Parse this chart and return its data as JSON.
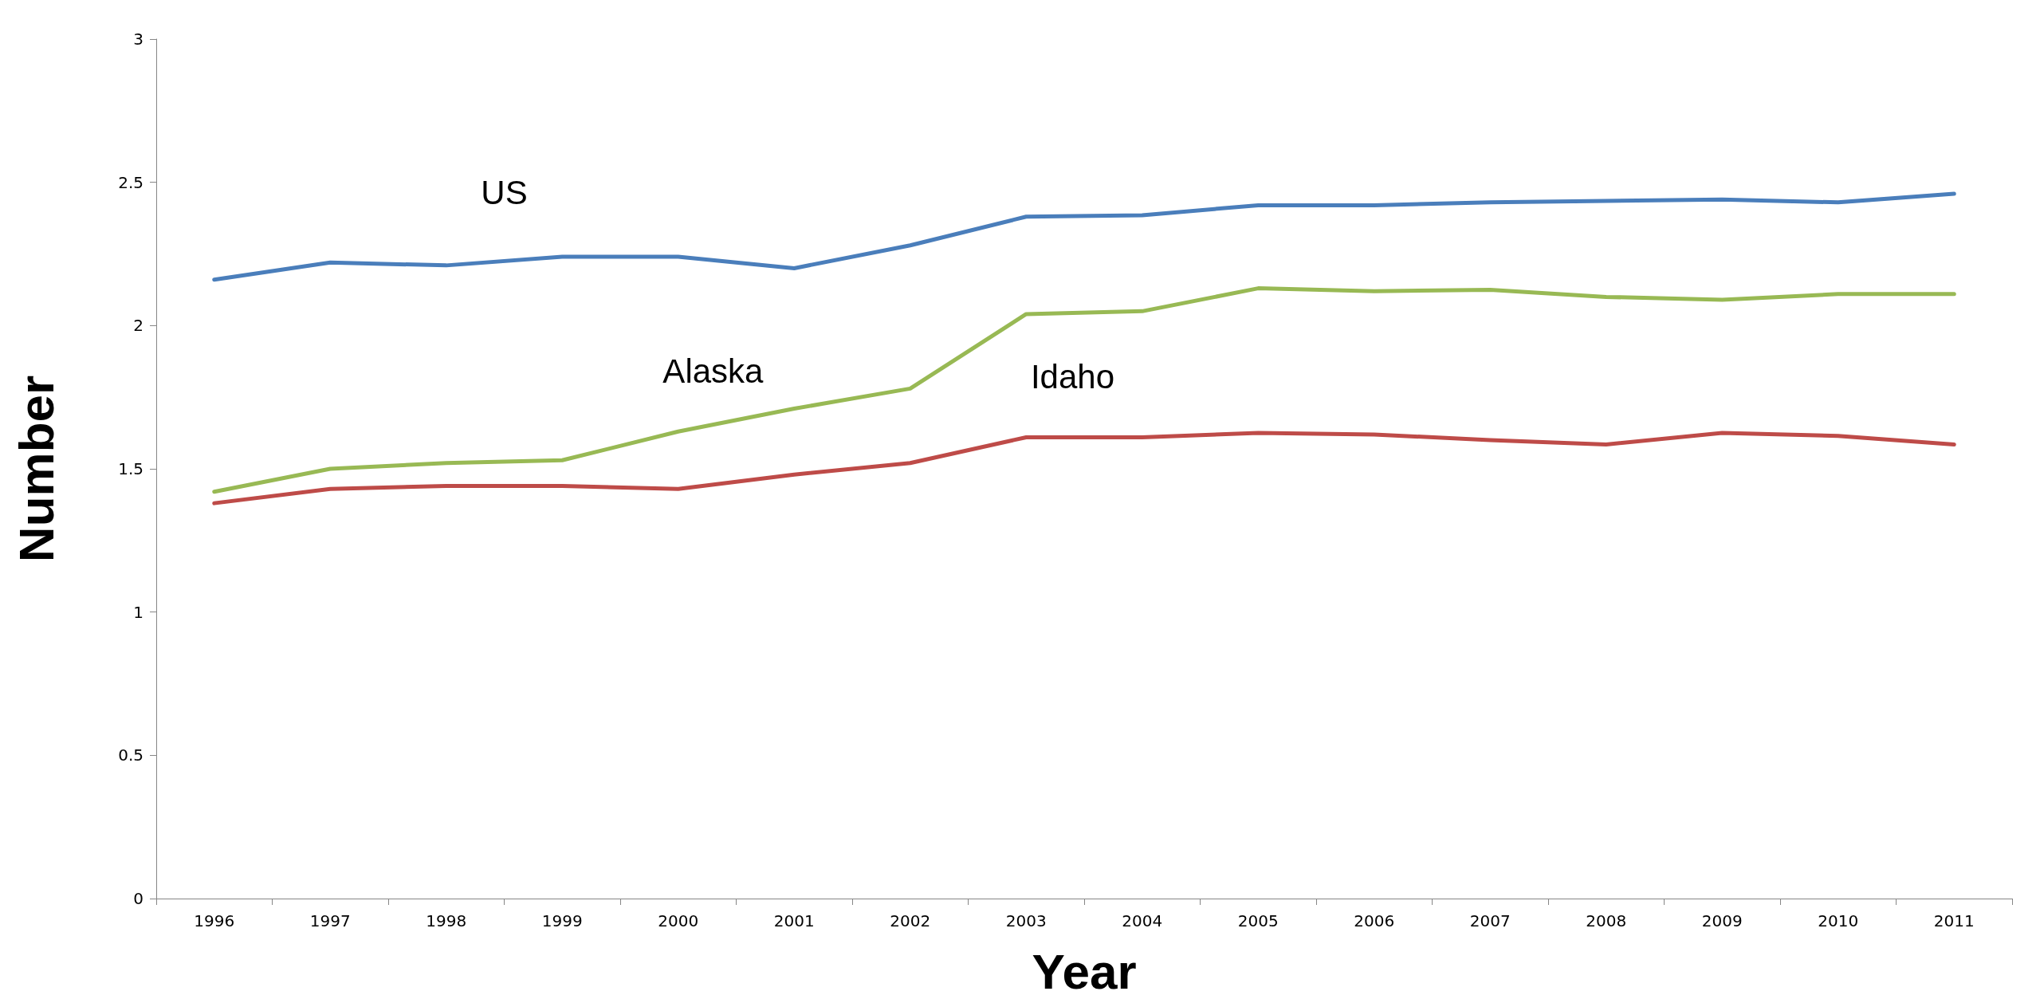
{
  "chart_data": {
    "type": "line",
    "xlabel": "Year",
    "ylabel": "Number",
    "categories": [
      "1996",
      "1997",
      "1998",
      "1999",
      "2000",
      "2001",
      "2002",
      "2003",
      "2004",
      "2005",
      "2006",
      "2007",
      "2008",
      "2009",
      "2010",
      "2011"
    ],
    "series": [
      {
        "name": "US",
        "color": "#4a7ebb",
        "values": [
          2.16,
          2.22,
          2.21,
          2.24,
          2.24,
          2.2,
          2.28,
          2.38,
          2.385,
          2.42,
          2.42,
          2.43,
          2.435,
          2.44,
          2.43,
          2.46
        ]
      },
      {
        "name": "Alaska",
        "color": "#98b954",
        "values": [
          1.42,
          1.5,
          1.52,
          1.53,
          1.63,
          1.71,
          1.78,
          2.04,
          2.05,
          2.13,
          2.12,
          2.125,
          2.1,
          2.09,
          2.11,
          2.11
        ]
      },
      {
        "name": "Idaho",
        "color": "#be4b48",
        "values": [
          1.38,
          1.43,
          1.44,
          1.44,
          1.43,
          1.48,
          1.52,
          1.61,
          1.61,
          1.625,
          1.62,
          1.6,
          1.585,
          1.625,
          1.615,
          1.585
        ]
      }
    ],
    "ylim": [
      0,
      3
    ],
    "yticks": [
      0,
      0.5,
      1,
      1.5,
      2,
      2.5,
      3
    ],
    "grid": false,
    "legend": false,
    "marker": "none",
    "line_style": "solid"
  }
}
